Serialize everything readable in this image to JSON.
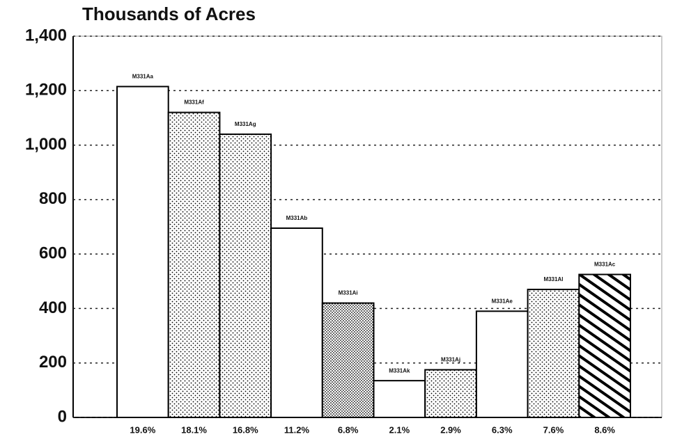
{
  "chart_data": {
    "type": "bar",
    "title": "Thousands of Acres",
    "categories": [
      "19.6%",
      "18.1%",
      "16.8%",
      "11.2%",
      "6.8%",
      "2.1%",
      "2.9%",
      "6.3%",
      "7.6%",
      "8.6%"
    ],
    "bar_labels": [
      "M331Aa",
      "M331Af",
      "M331Ag",
      "M331Ab",
      "M331Ai",
      "M331Ak",
      "M331Aj",
      "M331Ae",
      "M331Al",
      "M331Ac"
    ],
    "values": [
      1215,
      1120,
      1040,
      695,
      420,
      135,
      175,
      390,
      470,
      525
    ],
    "patterns": [
      "none",
      "dots",
      "dots",
      "none",
      "dense-dots",
      "none",
      "dots",
      "none",
      "dots",
      "hatch"
    ],
    "color": "#000000",
    "ylim": [
      0,
      1400
    ],
    "yticks": [
      0,
      200,
      400,
      600,
      800,
      {
        "value": 1000,
        "label": "1,000"
      },
      {
        "value": 1200,
        "label": "1,200"
      },
      {
        "value": 1400,
        "label": "1,400"
      }
    ],
    "grid": true
  }
}
